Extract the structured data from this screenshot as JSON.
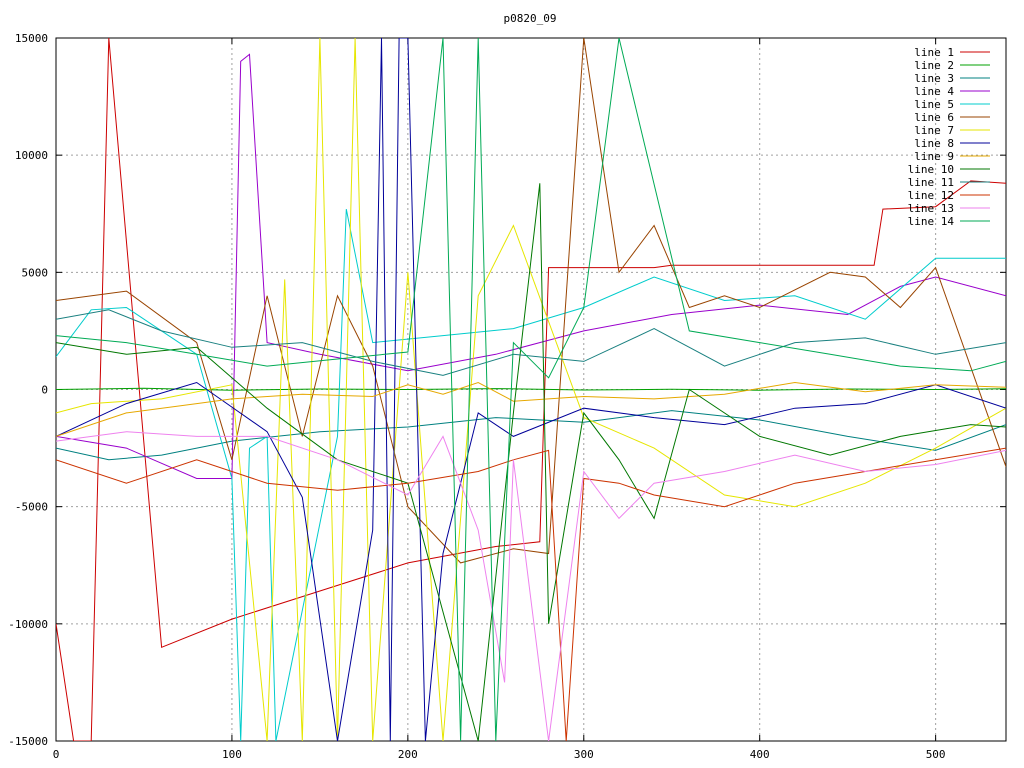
{
  "chart_data": {
    "type": "line",
    "title": "p0820_09",
    "xlabel": "",
    "ylabel": "",
    "xlim": [
      0,
      540
    ],
    "ylim": [
      -15000,
      15000
    ],
    "x_ticks": [
      0,
      100,
      200,
      300,
      400,
      500
    ],
    "y_ticks": [
      -15000,
      -10000,
      -5000,
      0,
      5000,
      10000,
      15000
    ],
    "grid": true,
    "legend_position": "top-right",
    "series": [
      {
        "name": "line 1",
        "color": "#cc0000",
        "x": [
          0,
          10,
          20,
          30,
          60,
          100,
          150,
          200,
          250,
          275,
          280,
          300,
          340,
          350,
          400,
          450,
          465,
          470,
          500,
          520,
          540
        ],
        "y": [
          -10000,
          -15000,
          -15000,
          15000,
          -11000,
          -9800,
          -8600,
          -7400,
          -6700,
          -6500,
          5200,
          5200,
          5200,
          5300,
          5300,
          5300,
          5300,
          7700,
          7800,
          8900,
          8800
        ]
      },
      {
        "name": "line 2",
        "color": "#00a000",
        "x": [
          0,
          50,
          100,
          150,
          200,
          250,
          300,
          350,
          400,
          450,
          500,
          540
        ],
        "y": [
          0,
          50,
          -30,
          20,
          0,
          40,
          -20,
          10,
          -30,
          20,
          0,
          30
        ]
      },
      {
        "name": "line 3",
        "color": "#008080",
        "x": [
          0,
          30,
          60,
          100,
          150,
          200,
          250,
          300,
          350,
          400,
          450,
          500,
          540
        ],
        "y": [
          -2500,
          -3000,
          -2800,
          -2200,
          -1800,
          -1600,
          -1200,
          -1400,
          -900,
          -1300,
          -2000,
          -2600,
          -1500
        ]
      },
      {
        "name": "line 4",
        "color": "#9900cc",
        "x": [
          0,
          40,
          80,
          100,
          105,
          110,
          120,
          150,
          200,
          250,
          300,
          350,
          400,
          450,
          480,
          500,
          540
        ],
        "y": [
          -2000,
          -2500,
          -3800,
          -3800,
          14000,
          14300,
          2000,
          1500,
          800,
          1500,
          2500,
          3200,
          3600,
          3200,
          4400,
          4800,
          4000
        ]
      },
      {
        "name": "line 5",
        "color": "#00cccc",
        "x": [
          0,
          20,
          40,
          60,
          80,
          100,
          105,
          110,
          120,
          125,
          160,
          165,
          180,
          220,
          260,
          300,
          340,
          380,
          420,
          460,
          500,
          540
        ],
        "y": [
          1400,
          3400,
          3500,
          2500,
          1500,
          -3800,
          -15000,
          -2500,
          -2000,
          -15000,
          -2000,
          7700,
          2000,
          2300,
          2600,
          3500,
          4800,
          3800,
          4000,
          3000,
          5600,
          5600
        ]
      },
      {
        "name": "line 6",
        "color": "#994400",
        "x": [
          0,
          40,
          80,
          100,
          120,
          140,
          160,
          180,
          200,
          230,
          260,
          280,
          300,
          320,
          340,
          360,
          380,
          400,
          440,
          460,
          480,
          500,
          540
        ],
        "y": [
          3800,
          4200,
          2000,
          -3000,
          4000,
          -2000,
          4000,
          1000,
          -5000,
          -7400,
          -6800,
          -7000,
          15000,
          5000,
          7000,
          3500,
          4000,
          3500,
          5000,
          4800,
          3500,
          5200,
          -3300
        ]
      },
      {
        "name": "line 7",
        "color": "#e6e600",
        "x": [
          0,
          20,
          60,
          100,
          120,
          130,
          140,
          150,
          160,
          170,
          180,
          200,
          220,
          240,
          260,
          300,
          340,
          380,
          420,
          460,
          500,
          540
        ],
        "y": [
          -1000,
          -600,
          -400,
          200,
          -15000,
          4700,
          -15000,
          15000,
          -15000,
          15000,
          -15000,
          5000,
          -15000,
          4000,
          7000,
          -1200,
          -2500,
          -4500,
          -5000,
          -4000,
          -2500,
          -800
        ]
      },
      {
        "name": "line 8",
        "color": "#000099",
        "x": [
          0,
          40,
          80,
          120,
          140,
          160,
          180,
          185,
          190,
          195,
          200,
          210,
          220,
          240,
          260,
          300,
          340,
          380,
          420,
          460,
          500,
          540
        ],
        "y": [
          -2000,
          -600,
          300,
          -1800,
          -4600,
          -15000,
          -6000,
          15000,
          -15000,
          15000,
          15000,
          -15000,
          -7000,
          -1000,
          -2000,
          -800,
          -1200,
          -1500,
          -800,
          -600,
          200,
          -800
        ]
      },
      {
        "name": "line 9",
        "color": "#e6a800",
        "x": [
          0,
          40,
          80,
          100,
          140,
          180,
          200,
          220,
          240,
          260,
          300,
          340,
          380,
          420,
          460,
          500,
          540
        ],
        "y": [
          -2000,
          -1000,
          -600,
          -400,
          -200,
          -300,
          200,
          -200,
          300,
          -500,
          -300,
          -400,
          -200,
          300,
          -100,
          200,
          100
        ]
      },
      {
        "name": "line 10",
        "color": "#007700",
        "x": [
          0,
          40,
          80,
          120,
          160,
          200,
          240,
          260,
          275,
          280,
          300,
          320,
          340,
          360,
          400,
          440,
          480,
          520,
          540
        ],
        "y": [
          2000,
          1500,
          1800,
          -800,
          -3000,
          -4000,
          -15000,
          -1000,
          8800,
          -10000,
          -1000,
          -3000,
          -5500,
          0,
          -2000,
          -2800,
          -2000,
          -1500,
          -1600
        ]
      },
      {
        "name": "line 11",
        "color": "#1a8080",
        "x": [
          0,
          30,
          60,
          100,
          140,
          180,
          220,
          260,
          300,
          340,
          380,
          420,
          460,
          500,
          540
        ],
        "y": [
          3000,
          3400,
          2500,
          1800,
          2000,
          1200,
          600,
          1500,
          1200,
          2600,
          1000,
          2000,
          2200,
          1500,
          2000
        ]
      },
      {
        "name": "line 12",
        "color": "#cc3300",
        "x": [
          0,
          40,
          80,
          120,
          160,
          200,
          240,
          260,
          280,
          290,
          300,
          320,
          340,
          380,
          420,
          460,
          500,
          540
        ],
        "y": [
          -3000,
          -4000,
          -3000,
          -4000,
          -4300,
          -4000,
          -3500,
          -3000,
          -2600,
          -15000,
          -3800,
          -4000,
          -4500,
          -5000,
          -4000,
          -3500,
          -3000,
          -2500
        ]
      },
      {
        "name": "line 13",
        "color": "#ee82ee",
        "x": [
          0,
          40,
          80,
          120,
          160,
          200,
          220,
          240,
          255,
          260,
          280,
          300,
          320,
          340,
          380,
          420,
          460,
          500,
          540
        ],
        "y": [
          -2200,
          -1800,
          -2000,
          -2000,
          -3000,
          -4500,
          -2000,
          -6000,
          -12500,
          -3000,
          -15000,
          -3500,
          -5500,
          -4000,
          -3500,
          -2800,
          -3500,
          -3200,
          -2600
        ]
      },
      {
        "name": "line 14",
        "color": "#00aa55",
        "x": [
          0,
          40,
          80,
          120,
          160,
          200,
          220,
          230,
          240,
          250,
          260,
          280,
          300,
          320,
          360,
          400,
          440,
          480,
          520,
          540
        ],
        "y": [
          2300,
          2000,
          1500,
          1000,
          1300,
          1600,
          15000,
          -15000,
          15000,
          -15000,
          2000,
          500,
          3500,
          15000,
          2500,
          2000,
          1500,
          1000,
          800,
          1200
        ]
      }
    ]
  }
}
